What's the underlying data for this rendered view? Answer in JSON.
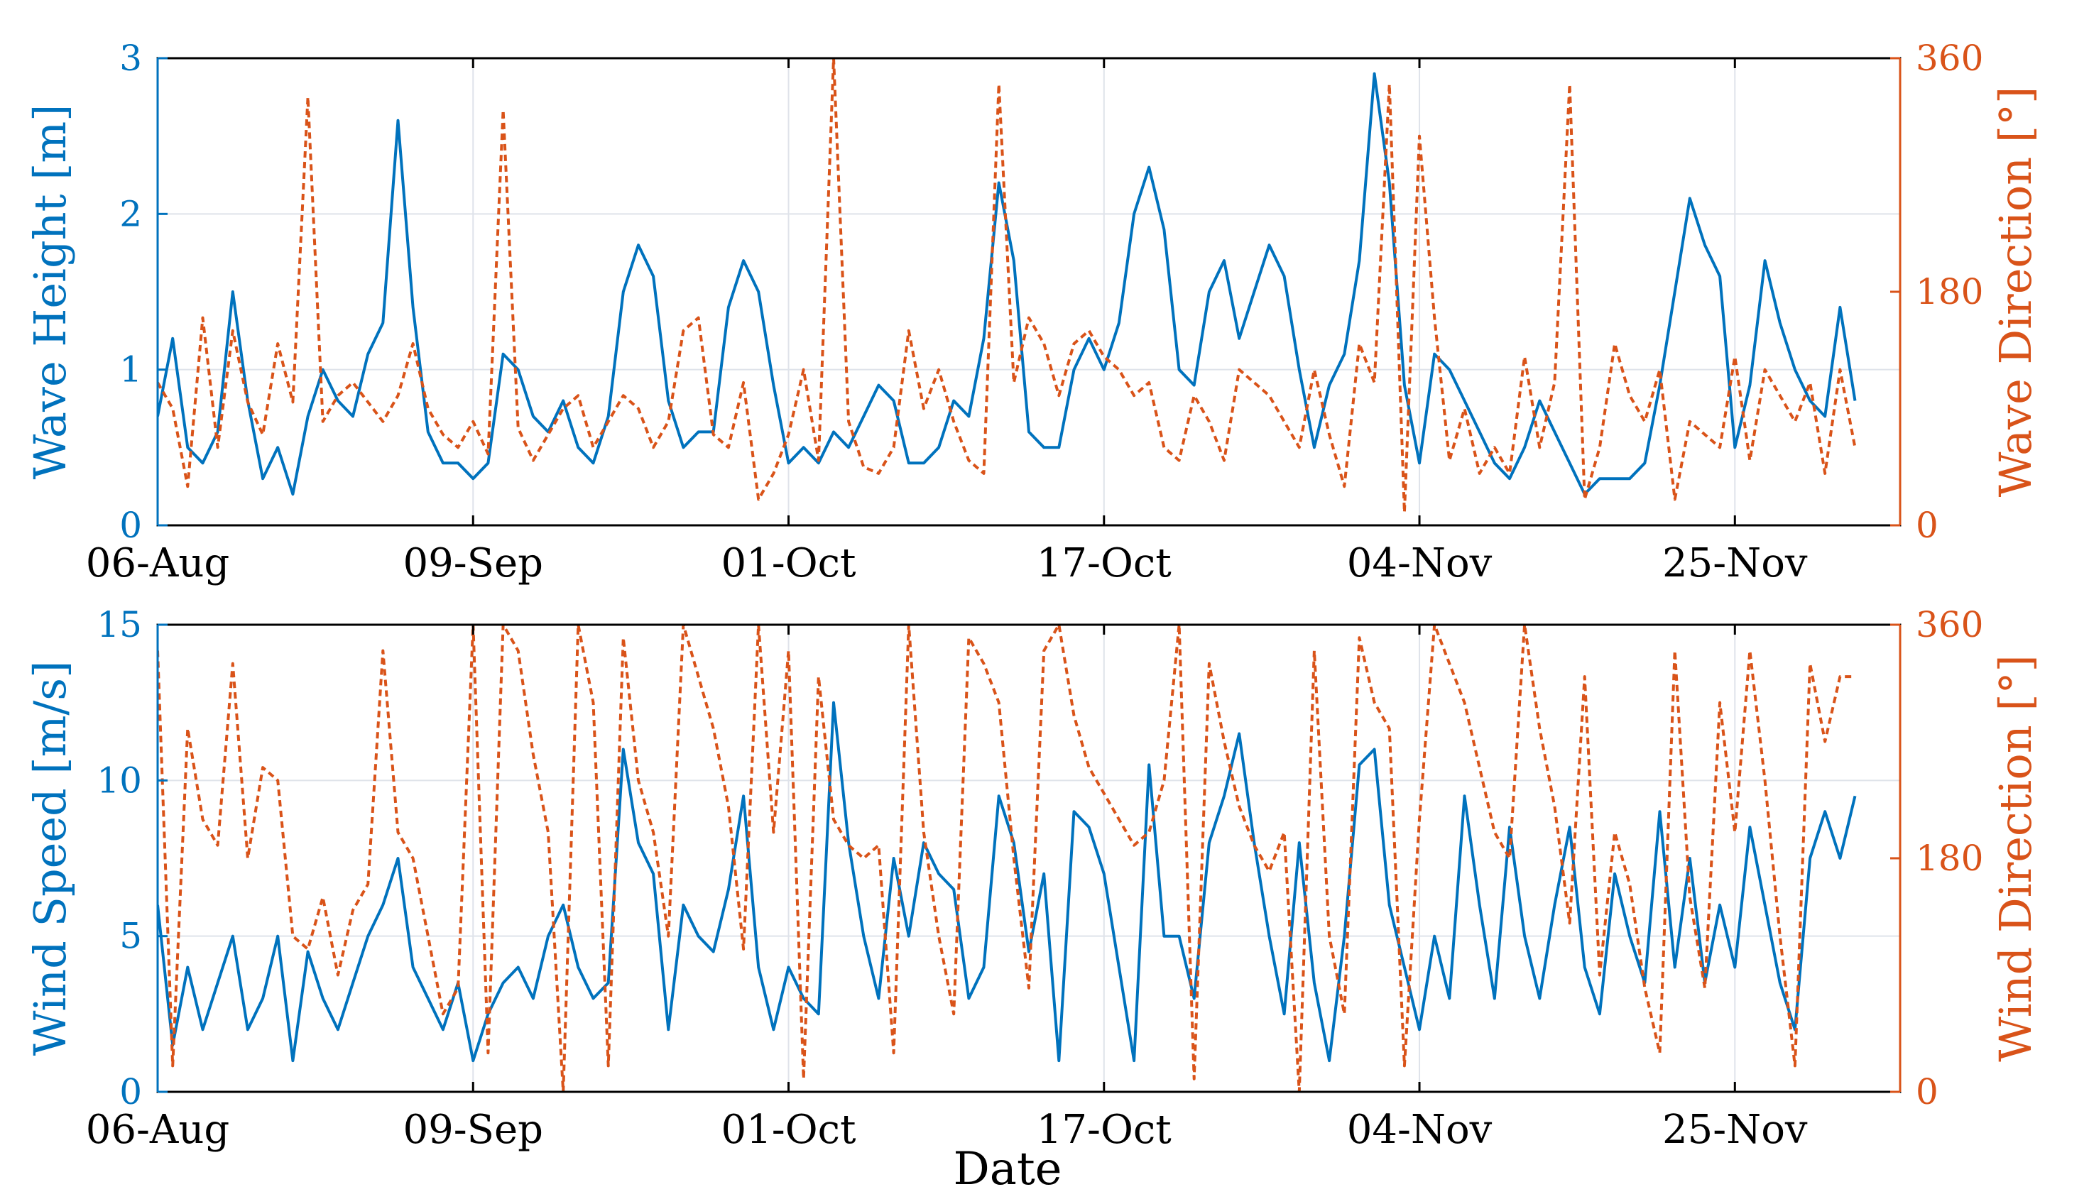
{
  "colors": {
    "left_series": "#0072BD",
    "right_series": "#D95319",
    "grid": "#dfe3ea",
    "axes": "#000000"
  },
  "chart_data": [
    {
      "type": "line",
      "name": "top",
      "xlabel": "",
      "ylabel_left": "Wave Height [m]",
      "ylabel_right": "Wave Direction [°]",
      "ylim_left": [
        0,
        3
      ],
      "ylim_right": [
        0,
        360
      ],
      "yticks_left": [
        "0",
        "1",
        "2",
        "3"
      ],
      "yticks_right": [
        "0",
        "180",
        "360"
      ],
      "xlim": [
        0,
        116
      ],
      "xticks": [
        0,
        21,
        42,
        63,
        84,
        105
      ],
      "xtick_labels": [
        "06-Aug",
        "09-Sep",
        "01-Oct",
        "17-Oct",
        "04-Nov",
        "25-Nov"
      ],
      "grid": true,
      "series": [
        {
          "name": "Wave Height",
          "axis": "left",
          "style": "solid",
          "x": [
            0,
            1,
            2,
            3,
            4,
            5,
            6,
            7,
            8,
            9,
            10,
            11,
            12,
            13,
            14,
            15,
            16,
            17,
            18,
            19,
            20,
            21,
            22,
            23,
            24,
            25,
            26,
            27,
            28,
            29,
            30,
            31,
            32,
            33,
            34,
            35,
            36,
            37,
            38,
            39,
            40,
            41,
            42,
            43,
            44,
            45,
            46,
            47,
            48,
            49,
            50,
            51,
            52,
            53,
            54,
            55,
            56,
            57,
            58,
            59,
            60,
            61,
            62,
            63,
            64,
            65,
            66,
            67,
            68,
            69,
            70,
            71,
            72,
            73,
            74,
            75,
            76,
            77,
            78,
            79,
            80,
            81,
            82,
            83,
            84,
            85,
            86,
            87,
            88,
            89,
            90,
            91,
            92,
            93,
            94,
            95,
            96,
            97,
            98,
            99,
            100,
            101,
            102,
            103,
            104,
            105,
            106,
            107,
            108,
            109,
            110,
            111,
            112,
            113
          ],
          "values": [
            0.7,
            1.2,
            0.5,
            0.4,
            0.6,
            1.5,
            0.8,
            0.3,
            0.5,
            0.2,
            0.7,
            1.0,
            0.8,
            0.7,
            1.1,
            1.3,
            2.6,
            1.4,
            0.6,
            0.4,
            0.4,
            0.3,
            0.4,
            1.1,
            1.0,
            0.7,
            0.6,
            0.8,
            0.5,
            0.4,
            0.7,
            1.5,
            1.8,
            1.6,
            0.8,
            0.5,
            0.6,
            0.6,
            1.4,
            1.7,
            1.5,
            0.9,
            0.4,
            0.5,
            0.4,
            0.6,
            0.5,
            0.7,
            0.9,
            0.8,
            0.4,
            0.4,
            0.5,
            0.8,
            0.7,
            1.2,
            2.2,
            1.7,
            0.6,
            0.5,
            0.5,
            1.0,
            1.2,
            1.0,
            1.3,
            2.0,
            2.3,
            1.9,
            1.0,
            0.9,
            1.5,
            1.7,
            1.2,
            1.5,
            1.8,
            1.6,
            1.0,
            0.5,
            0.9,
            1.1,
            1.7,
            2.9,
            2.2,
            0.9,
            0.4,
            1.1,
            1.0,
            0.8,
            0.6,
            0.4,
            0.3,
            0.5,
            0.8,
            0.6,
            0.4,
            0.2,
            0.3,
            0.3,
            0.3,
            0.4,
            0.9,
            1.5,
            2.1,
            1.8,
            1.6,
            0.5,
            0.9,
            1.7,
            1.3,
            1.0,
            0.8,
            0.7,
            1.4,
            0.8
          ]
        },
        {
          "name": "Wave Direction",
          "axis": "right",
          "style": "dashed",
          "x": [
            0,
            1,
            2,
            3,
            4,
            5,
            6,
            7,
            8,
            9,
            10,
            11,
            12,
            13,
            14,
            15,
            16,
            17,
            18,
            19,
            20,
            21,
            22,
            23,
            24,
            25,
            26,
            27,
            28,
            29,
            30,
            31,
            32,
            33,
            34,
            35,
            36,
            37,
            38,
            39,
            40,
            41,
            42,
            43,
            44,
            45,
            46,
            47,
            48,
            49,
            50,
            51,
            52,
            53,
            54,
            55,
            56,
            57,
            58,
            59,
            60,
            61,
            62,
            63,
            64,
            65,
            66,
            67,
            68,
            69,
            70,
            71,
            72,
            73,
            74,
            75,
            76,
            77,
            78,
            79,
            80,
            81,
            82,
            83,
            84,
            85,
            86,
            87,
            88,
            89,
            90,
            91,
            92,
            93,
            94,
            95,
            96,
            97,
            98,
            99,
            100,
            101,
            102,
            103,
            104,
            105,
            106,
            107,
            108,
            109,
            110,
            111,
            112,
            113
          ],
          "values": [
            110,
            90,
            30,
            160,
            60,
            150,
            95,
            70,
            140,
            95,
            330,
            80,
            100,
            110,
            95,
            80,
            100,
            140,
            90,
            70,
            60,
            80,
            55,
            320,
            75,
            50,
            70,
            90,
            100,
            60,
            80,
            100,
            90,
            60,
            80,
            150,
            160,
            70,
            60,
            110,
            20,
            40,
            70,
            120,
            50,
            360,
            80,
            45,
            40,
            60,
            150,
            90,
            120,
            80,
            50,
            40,
            340,
            110,
            160,
            140,
            100,
            140,
            150,
            130,
            120,
            100,
            110,
            60,
            50,
            100,
            80,
            50,
            120,
            110,
            100,
            80,
            60,
            120,
            70,
            30,
            140,
            110,
            340,
            10,
            300,
            160,
            50,
            90,
            40,
            60,
            40,
            130,
            60,
            110,
            340,
            20,
            60,
            140,
            100,
            80,
            120,
            20,
            80,
            70,
            60,
            130,
            50,
            120,
            100,
            80,
            110,
            40,
            120,
            60
          ]
        }
      ]
    },
    {
      "type": "line",
      "name": "bottom",
      "xlabel": "Date",
      "ylabel_left": "Wind Speed [m/s]",
      "ylabel_right": "Wind Direction [°]",
      "ylim_left": [
        0,
        15
      ],
      "ylim_right": [
        0,
        360
      ],
      "yticks_left": [
        "0",
        "5",
        "10",
        "15"
      ],
      "yticks_right": [
        "0",
        "180",
        "360"
      ],
      "xlim": [
        0,
        116
      ],
      "xticks": [
        0,
        21,
        42,
        63,
        84,
        105
      ],
      "xtick_labels": [
        "06-Aug",
        "09-Sep",
        "01-Oct",
        "17-Oct",
        "04-Nov",
        "25-Nov"
      ],
      "grid": true,
      "series": [
        {
          "name": "Wind Speed",
          "axis": "left",
          "style": "solid",
          "x": [
            0,
            1,
            2,
            3,
            4,
            5,
            6,
            7,
            8,
            9,
            10,
            11,
            12,
            13,
            14,
            15,
            16,
            17,
            18,
            19,
            20,
            21,
            22,
            23,
            24,
            25,
            26,
            27,
            28,
            29,
            30,
            31,
            32,
            33,
            34,
            35,
            36,
            37,
            38,
            39,
            40,
            41,
            42,
            43,
            44,
            45,
            46,
            47,
            48,
            49,
            50,
            51,
            52,
            53,
            54,
            55,
            56,
            57,
            58,
            59,
            60,
            61,
            62,
            63,
            64,
            65,
            66,
            67,
            68,
            69,
            70,
            71,
            72,
            73,
            74,
            75,
            76,
            77,
            78,
            79,
            80,
            81,
            82,
            83,
            84,
            85,
            86,
            87,
            88,
            89,
            90,
            91,
            92,
            93,
            94,
            95,
            96,
            97,
            98,
            99,
            100,
            101,
            102,
            103,
            104,
            105,
            106,
            107,
            108,
            109,
            110,
            111,
            112,
            113
          ],
          "values": [
            6.0,
            1.5,
            4.0,
            2.0,
            3.5,
            5.0,
            2.0,
            3.0,
            5.0,
            1.0,
            4.5,
            3.0,
            2.0,
            3.5,
            5.0,
            6.0,
            7.5,
            4.0,
            3.0,
            2.0,
            3.5,
            1.0,
            2.5,
            3.5,
            4.0,
            3.0,
            5.0,
            6.0,
            4.0,
            3.0,
            3.5,
            11.0,
            8.0,
            7.0,
            2.0,
            6.0,
            5.0,
            4.5,
            6.5,
            9.5,
            4.0,
            2.0,
            4.0,
            3.0,
            2.5,
            12.5,
            8.0,
            5.0,
            3.0,
            7.5,
            5.0,
            8.0,
            7.0,
            6.5,
            3.0,
            4.0,
            9.5,
            8.0,
            4.5,
            7.0,
            1.0,
            9.0,
            8.5,
            7.0,
            4.0,
            1.0,
            10.5,
            5.0,
            5.0,
            3.0,
            8.0,
            9.5,
            11.5,
            8.0,
            5.0,
            2.5,
            8.0,
            3.5,
            1.0,
            5.0,
            10.5,
            11.0,
            6.0,
            4.0,
            2.0,
            5.0,
            3.0,
            9.5,
            6.0,
            3.0,
            8.5,
            5.0,
            3.0,
            6.0,
            8.5,
            4.0,
            2.5,
            7.0,
            5.0,
            3.5,
            9.0,
            4.0,
            7.5,
            3.5,
            6.0,
            4.0,
            8.5,
            6.0,
            3.5,
            2.0,
            7.5,
            9.0,
            7.5,
            9.5
          ]
        },
        {
          "name": "Wind Direction",
          "axis": "right",
          "style": "dashed",
          "x": [
            0,
            1,
            2,
            3,
            4,
            5,
            6,
            7,
            8,
            9,
            10,
            11,
            12,
            13,
            14,
            15,
            16,
            17,
            18,
            19,
            20,
            21,
            22,
            23,
            24,
            25,
            26,
            27,
            28,
            29,
            30,
            31,
            32,
            33,
            34,
            35,
            36,
            37,
            38,
            39,
            40,
            41,
            42,
            43,
            44,
            45,
            46,
            47,
            48,
            49,
            50,
            51,
            52,
            53,
            54,
            55,
            56,
            57,
            58,
            59,
            60,
            61,
            62,
            63,
            64,
            65,
            66,
            67,
            68,
            69,
            70,
            71,
            72,
            73,
            74,
            75,
            76,
            77,
            78,
            79,
            80,
            81,
            82,
            83,
            84,
            85,
            86,
            87,
            88,
            89,
            90,
            91,
            92,
            93,
            94,
            95,
            96,
            97,
            98,
            99,
            100,
            101,
            102,
            103,
            104,
            105,
            106,
            107,
            108,
            109,
            110,
            111,
            112,
            113
          ],
          "values": [
            340,
            20,
            280,
            210,
            190,
            330,
            180,
            250,
            240,
            120,
            110,
            150,
            90,
            140,
            160,
            340,
            200,
            180,
            120,
            60,
            80,
            360,
            30,
            360,
            340,
            260,
            200,
            0,
            360,
            300,
            20,
            350,
            240,
            200,
            120,
            360,
            320,
            280,
            220,
            110,
            360,
            200,
            340,
            10,
            320,
            210,
            190,
            180,
            190,
            30,
            360,
            200,
            120,
            60,
            350,
            330,
            300,
            180,
            80,
            340,
            360,
            290,
            250,
            230,
            210,
            190,
            200,
            240,
            360,
            10,
            330,
            270,
            220,
            190,
            170,
            200,
            0,
            340,
            120,
            60,
            350,
            300,
            280,
            20,
            210,
            360,
            330,
            300,
            250,
            200,
            180,
            360,
            280,
            220,
            130,
            320,
            90,
            200,
            160,
            80,
            30,
            340,
            150,
            80,
            300,
            200,
            340,
            240,
            120,
            20,
            330,
            270,
            320,
            320
          ]
        }
      ]
    }
  ]
}
